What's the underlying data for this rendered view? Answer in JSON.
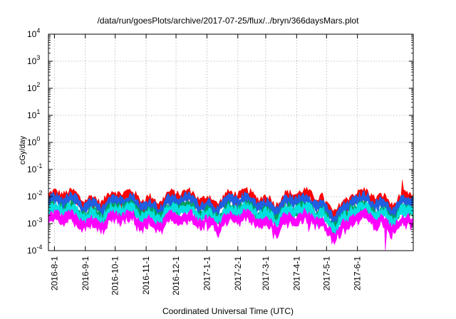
{
  "chart_data": {
    "type": "area",
    "title": "/data/run/goesPlots/archive/2017-07-25/flux/../bryn/366daysMars.plot",
    "xlabel": "Coordinated Universal Time (UTC)",
    "ylabel": "cGy/day",
    "yscale": "log",
    "ylim": [
      0.0001,
      10000
    ],
    "xlim": [
      0,
      366
    ],
    "grid": true,
    "legend": "none",
    "ytick_values": [
      0.0001,
      0.001,
      0.01,
      0.1,
      1,
      10,
      100,
      1000,
      10000
    ],
    "yticks": [
      {
        "base": "10",
        "exp": "-4"
      },
      {
        "base": "10",
        "exp": "-3"
      },
      {
        "base": "10",
        "exp": "-2"
      },
      {
        "base": "10",
        "exp": "-1"
      },
      {
        "base": "10",
        "exp": "0"
      },
      {
        "base": "10",
        "exp": "1"
      },
      {
        "base": "10",
        "exp": "2"
      },
      {
        "base": "10",
        "exp": "3"
      },
      {
        "base": "10",
        "exp": "4"
      }
    ],
    "xtick_labels": [
      "2016-8-1",
      "2016-9-1",
      "2016-10-1",
      "2016-11-1",
      "2016-12-1",
      "2017-1-1",
      "2017-2-1",
      "2017-3-1",
      "2017-4-1",
      "2017-5-1",
      "2017-6-1"
    ],
    "xtick_days": [
      6,
      37,
      67,
      98,
      128,
      159,
      190,
      218,
      249,
      279,
      310
    ],
    "series": [
      {
        "name": "red",
        "color": "#ff0000",
        "approx_level": 0.011,
        "anomalies": [
          {
            "day": 355,
            "value": 0.04
          }
        ]
      },
      {
        "name": "blue",
        "color": "#1f5fe0",
        "approx_level": 0.008
      },
      {
        "name": "green",
        "color": "#00a060",
        "approx_level": 0.004
      },
      {
        "name": "cyan",
        "color": "#00e0e0",
        "approx_level": 0.0035
      },
      {
        "name": "magenta",
        "color": "#ff00ff",
        "approx_level": 0.0018,
        "anomalies": [
          {
            "day": 261,
            "value": 0.0005
          },
          {
            "day": 290,
            "value": 0.0005
          },
          {
            "day": 338,
            "value": 0.0001
          },
          {
            "day": 343,
            "value": 0.0003
          }
        ]
      }
    ]
  }
}
